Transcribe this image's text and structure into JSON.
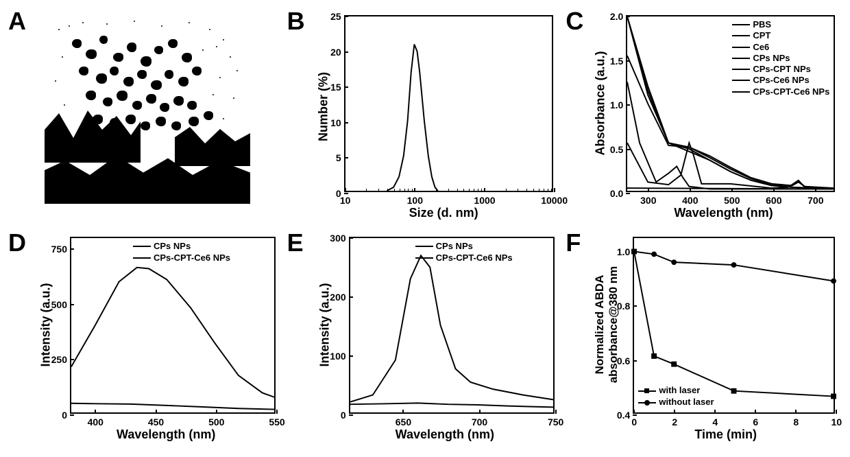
{
  "panelA": {
    "label": "A",
    "type": "micrograph",
    "background_color": "#ffffff"
  },
  "panelB": {
    "label": "B",
    "type": "line",
    "xlabel": "Size (d. nm)",
    "ylabel": "Number (%)",
    "label_fontsize": 18,
    "tick_fontsize": 14,
    "xscale": "log",
    "xlim": [
      10,
      10000
    ],
    "ylim": [
      0,
      25
    ],
    "xticks": [
      10,
      100,
      1000,
      10000
    ],
    "yticks": [
      0,
      5,
      10,
      15,
      20,
      25
    ],
    "line_color": "#000000",
    "line_width": 2,
    "data": [
      [
        40,
        0
      ],
      [
        50,
        0.5
      ],
      [
        60,
        2
      ],
      [
        70,
        5
      ],
      [
        80,
        10
      ],
      [
        90,
        17
      ],
      [
        100,
        21
      ],
      [
        110,
        20
      ],
      [
        120,
        17
      ],
      [
        140,
        10
      ],
      [
        160,
        5
      ],
      [
        180,
        2
      ],
      [
        200,
        0.5
      ],
      [
        220,
        0
      ]
    ]
  },
  "panelC": {
    "label": "C",
    "type": "line",
    "xlabel": "Wavelength (nm)",
    "ylabel": "Absorbance (a.u.)",
    "label_fontsize": 18,
    "tick_fontsize": 14,
    "xlim": [
      250,
      750
    ],
    "ylim": [
      0,
      2.0
    ],
    "xticks": [
      300,
      400,
      500,
      600,
      700
    ],
    "yticks": [
      0,
      0.5,
      1.0,
      1.5,
      2.0
    ],
    "line_color": "#000000",
    "line_width": 2,
    "legend_items": [
      "PBS",
      "CPT",
      "Ce6",
      "CPs NPs",
      "CPs-CPT NPs",
      "CPs-Ce6 NPs",
      "CPs-CPT-Ce6 NPs"
    ],
    "legend_fontsize": 13,
    "series": {
      "PBS": [
        [
          250,
          0.03
        ],
        [
          750,
          0.02
        ]
      ],
      "CPT": [
        [
          250,
          1.25
        ],
        [
          280,
          0.55
        ],
        [
          320,
          0.1
        ],
        [
          350,
          0.2
        ],
        [
          370,
          0.28
        ],
        [
          385,
          0.15
        ],
        [
          400,
          0.05
        ],
        [
          450,
          0.02
        ],
        [
          750,
          0.02
        ]
      ],
      "Ce6": [
        [
          250,
          0.55
        ],
        [
          300,
          0.1
        ],
        [
          350,
          0.07
        ],
        [
          380,
          0.18
        ],
        [
          400,
          0.55
        ],
        [
          410,
          0.42
        ],
        [
          430,
          0.08
        ],
        [
          500,
          0.08
        ],
        [
          600,
          0.03
        ],
        [
          640,
          0.04
        ],
        [
          665,
          0.12
        ],
        [
          680,
          0.04
        ],
        [
          750,
          0.02
        ]
      ],
      "CPs NPs": [
        [
          250,
          2.0
        ],
        [
          300,
          1.1
        ],
        [
          350,
          0.55
        ],
        [
          400,
          0.45
        ],
        [
          450,
          0.35
        ],
        [
          500,
          0.22
        ],
        [
          550,
          0.12
        ],
        [
          600,
          0.06
        ],
        [
          650,
          0.04
        ],
        [
          700,
          0.03
        ],
        [
          750,
          0.02
        ]
      ],
      "CPs-CPT NPs": [
        [
          250,
          2.0
        ],
        [
          300,
          1.15
        ],
        [
          350,
          0.55
        ],
        [
          400,
          0.48
        ],
        [
          450,
          0.35
        ],
        [
          500,
          0.22
        ],
        [
          550,
          0.12
        ],
        [
          600,
          0.06
        ],
        [
          650,
          0.04
        ],
        [
          700,
          0.03
        ],
        [
          750,
          0.02
        ]
      ],
      "CPs-Ce6 NPs": [
        [
          250,
          1.55
        ],
        [
          300,
          1.0
        ],
        [
          350,
          0.52
        ],
        [
          400,
          0.5
        ],
        [
          450,
          0.38
        ],
        [
          500,
          0.25
        ],
        [
          550,
          0.14
        ],
        [
          600,
          0.07
        ],
        [
          650,
          0.06
        ],
        [
          665,
          0.1
        ],
        [
          680,
          0.05
        ],
        [
          750,
          0.02
        ]
      ],
      "CPs-CPT-Ce6 NPs": [
        [
          250,
          2.0
        ],
        [
          300,
          1.2
        ],
        [
          350,
          0.55
        ],
        [
          400,
          0.5
        ],
        [
          450,
          0.4
        ],
        [
          500,
          0.27
        ],
        [
          550,
          0.15
        ],
        [
          600,
          0.08
        ],
        [
          650,
          0.06
        ],
        [
          665,
          0.11
        ],
        [
          680,
          0.05
        ],
        [
          750,
          0.03
        ]
      ]
    }
  },
  "panelD": {
    "label": "D",
    "type": "line",
    "xlabel": "Wavelength (nm)",
    "ylabel": "Intensity (a.u.)",
    "label_fontsize": 18,
    "tick_fontsize": 14,
    "xlim": [
      380,
      550
    ],
    "ylim": [
      0,
      800
    ],
    "xticks": [
      400,
      450,
      500,
      550
    ],
    "yticks": [
      0,
      250,
      500,
      750
    ],
    "line_color": "#000000",
    "line_width": 2,
    "legend_items": [
      "CPs NPs",
      "CPs-CPT-Ce6 NPs"
    ],
    "legend_fontsize": 13,
    "series": {
      "CPs NPs": [
        [
          380,
          210
        ],
        [
          400,
          400
        ],
        [
          420,
          600
        ],
        [
          435,
          665
        ],
        [
          445,
          660
        ],
        [
          460,
          610
        ],
        [
          480,
          480
        ],
        [
          500,
          320
        ],
        [
          520,
          170
        ],
        [
          540,
          90
        ],
        [
          550,
          70
        ]
      ],
      "CPs-CPT-Ce6 NPs": [
        [
          380,
          42
        ],
        [
          400,
          40
        ],
        [
          430,
          38
        ],
        [
          460,
          32
        ],
        [
          490,
          25
        ],
        [
          520,
          18
        ],
        [
          550,
          14
        ]
      ]
    }
  },
  "panelE": {
    "label": "E",
    "type": "line",
    "xlabel": "Wavelength (nm)",
    "ylabel": "Intensity (a.u.)",
    "label_fontsize": 18,
    "tick_fontsize": 14,
    "xlim": [
      615,
      750
    ],
    "ylim": [
      0,
      300
    ],
    "xticks": [
      650,
      700,
      750
    ],
    "yticks": [
      0,
      100,
      200,
      300
    ],
    "line_color": "#000000",
    "line_width": 2,
    "legend_items": [
      "CPs NPs",
      "CPs-CPT-Ce6 NPs"
    ],
    "legend_fontsize": 13,
    "series": {
      "CPs-CPT-Ce6 NPs": [
        [
          615,
          18
        ],
        [
          630,
          30
        ],
        [
          645,
          90
        ],
        [
          655,
          230
        ],
        [
          662,
          270
        ],
        [
          668,
          250
        ],
        [
          675,
          150
        ],
        [
          685,
          75
        ],
        [
          695,
          52
        ],
        [
          710,
          40
        ],
        [
          730,
          30
        ],
        [
          750,
          22
        ]
      ],
      "CPs NPs": [
        [
          615,
          14
        ],
        [
          640,
          15
        ],
        [
          660,
          16
        ],
        [
          680,
          14
        ],
        [
          700,
          13
        ],
        [
          720,
          11
        ],
        [
          750,
          9
        ]
      ]
    }
  },
  "panelF": {
    "label": "F",
    "type": "line-marker",
    "xlabel": "Time (min)",
    "ylabel_line1": "Normalized ABDA",
    "ylabel_line2": "absorbance@380 nm",
    "label_fontsize": 17,
    "tick_fontsize": 14,
    "xlim": [
      0,
      10
    ],
    "ylim": [
      0.4,
      1.05
    ],
    "xticks": [
      0,
      2,
      4,
      6,
      8,
      10
    ],
    "yticks": [
      0.4,
      0.6,
      0.8,
      1.0
    ],
    "line_color": "#000000",
    "line_width": 2,
    "legend_items": [
      "with laser",
      "without laser"
    ],
    "legend_markers": [
      "square",
      "circle"
    ],
    "legend_fontsize": 13,
    "series": {
      "without laser": [
        [
          0,
          1.0
        ],
        [
          1,
          0.99
        ],
        [
          2,
          0.96
        ],
        [
          5,
          0.95
        ],
        [
          10,
          0.89
        ]
      ],
      "with laser": [
        [
          0,
          1.0
        ],
        [
          1,
          0.61
        ],
        [
          2,
          0.58
        ],
        [
          5,
          0.48
        ],
        [
          10,
          0.46
        ]
      ]
    }
  }
}
